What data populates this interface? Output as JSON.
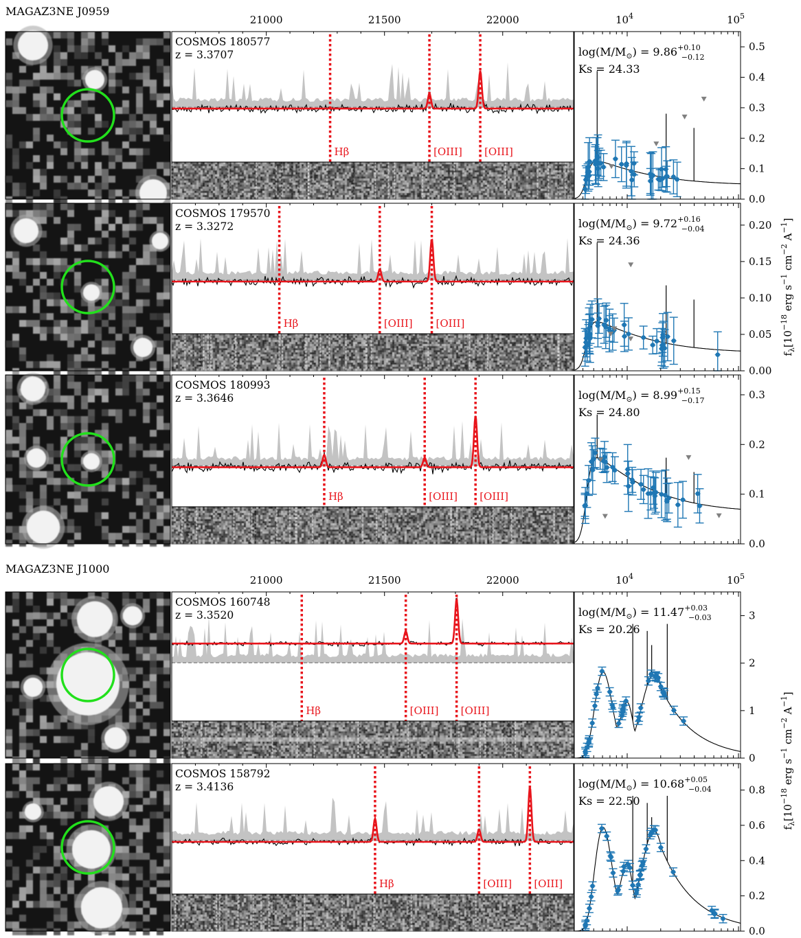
{
  "groups": [
    {
      "title": "MAGAZ3NE J0959",
      "top_ticks": [
        "21000",
        "21500",
        "22000"
      ],
      "sed_ticks": [
        "10",
        "10"
      ],
      "sed_tick_exp": [
        "4",
        "5"
      ]
    },
    {
      "title": "MAGAZ3NE J1000",
      "top_ticks": [
        "21000",
        "21500",
        "22000"
      ],
      "sed_ticks": [
        "10",
        "10"
      ],
      "sed_tick_exp": [
        "4",
        "5"
      ]
    }
  ],
  "ylabel": "f",
  "ylabel_sub": "λ",
  "ylabel_rest": "[10",
  "ylabel_unit_parts": [
    "−18",
    " erg s",
    "−1",
    " cm",
    "−2",
    " A",
    "−1",
    "]"
  ],
  "chart_data": [
    {
      "type": "line",
      "source": "COSMOS 180577",
      "z": "z = 3.3707",
      "mass_prefix": "log(M/M",
      "mass_suffix": ") = ",
      "mass": "9.86",
      "mass_up": "+0.10",
      "mass_lo": "−0.12",
      "ks": "Ks = 24.33",
      "lines": [
        {
          "label": "Hβ",
          "x": 21270
        },
        {
          "label": "[OIII]",
          "x": 21690
        },
        {
          "label": "[OIII]",
          "x": 21905
        }
      ],
      "sed_yticks": [
        "0.0",
        "0.1",
        "0.2",
        "0.3",
        "0.4",
        "0.5"
      ],
      "sed_ylim": [
        0,
        0.55
      ]
    },
    {
      "type": "line",
      "source": "COSMOS 179570",
      "z": "z = 3.3272",
      "mass_prefix": "log(M/M",
      "mass_suffix": ") = ",
      "mass": "9.72",
      "mass_up": "+0.16",
      "mass_lo": "−0.04",
      "ks": "Ks = 24.36",
      "lines": [
        {
          "label": "Hβ",
          "x": 21055
        },
        {
          "label": "[OIII]",
          "x": 21480
        },
        {
          "label": "[OIII]",
          "x": 21700
        }
      ],
      "sed_yticks": [
        "0.00",
        "0.05",
        "0.10",
        "0.15",
        "0.20"
      ],
      "sed_ylim": [
        0,
        0.23
      ]
    },
    {
      "type": "line",
      "source": "COSMOS 180993",
      "z": "z = 3.3646",
      "mass_prefix": "log(M/M",
      "mass_suffix": ") = ",
      "mass": "8.99",
      "mass_up": "+0.15",
      "mass_lo": "−0.17",
      "ks": "Ks = 24.80",
      "lines": [
        {
          "label": "Hβ",
          "x": 21245
        },
        {
          "label": "[OIII]",
          "x": 21670
        },
        {
          "label": "[OIII]",
          "x": 21885
        }
      ],
      "sed_yticks": [
        "0.0",
        "0.1",
        "0.2",
        "0.3"
      ],
      "sed_ylim": [
        0,
        0.34
      ]
    },
    {
      "type": "line",
      "source": "COSMOS 160748",
      "z": "z = 3.3520",
      "mass_prefix": "log(M/M",
      "mass_suffix": ") = ",
      "mass": "11.47",
      "mass_up": "+0.03",
      "mass_lo": "−0.03",
      "ks": "Ks = 20.26",
      "lines": [
        {
          "label": "Hβ",
          "x": 21150
        },
        {
          "label": "[OIII]",
          "x": 21590
        },
        {
          "label": "[OIII]",
          "x": 21805
        }
      ],
      "sed_yticks": [
        "0",
        "1",
        "2",
        "3"
      ],
      "sed_ylim": [
        0,
        3.5
      ]
    },
    {
      "type": "line",
      "source": "COSMOS 158792",
      "z": "z = 3.4136",
      "mass_prefix": "log(M/M",
      "mass_suffix": ") = ",
      "mass": "10.68",
      "mass_up": "+0.05",
      "mass_lo": "−0.04",
      "ks": "Ks = 22.50",
      "lines": [
        {
          "label": "Hβ",
          "x": 21460
        },
        {
          "label": "[OIII]",
          "x": 21900
        },
        {
          "label": "[OIII]",
          "x": 22115
        }
      ],
      "sed_yticks": [
        "0.0",
        "0.2",
        "0.4",
        "0.6",
        "0.8"
      ],
      "sed_ylim": [
        0,
        0.95
      ]
    }
  ],
  "colors": {
    "emission_line": "#e8141b",
    "fit": "#e8141b",
    "spectrum": "#000000",
    "noise": "#c3c3c3",
    "sed_points": "#1f77b4",
    "upper_limits": "#808080",
    "aperture": "#22e01c"
  }
}
